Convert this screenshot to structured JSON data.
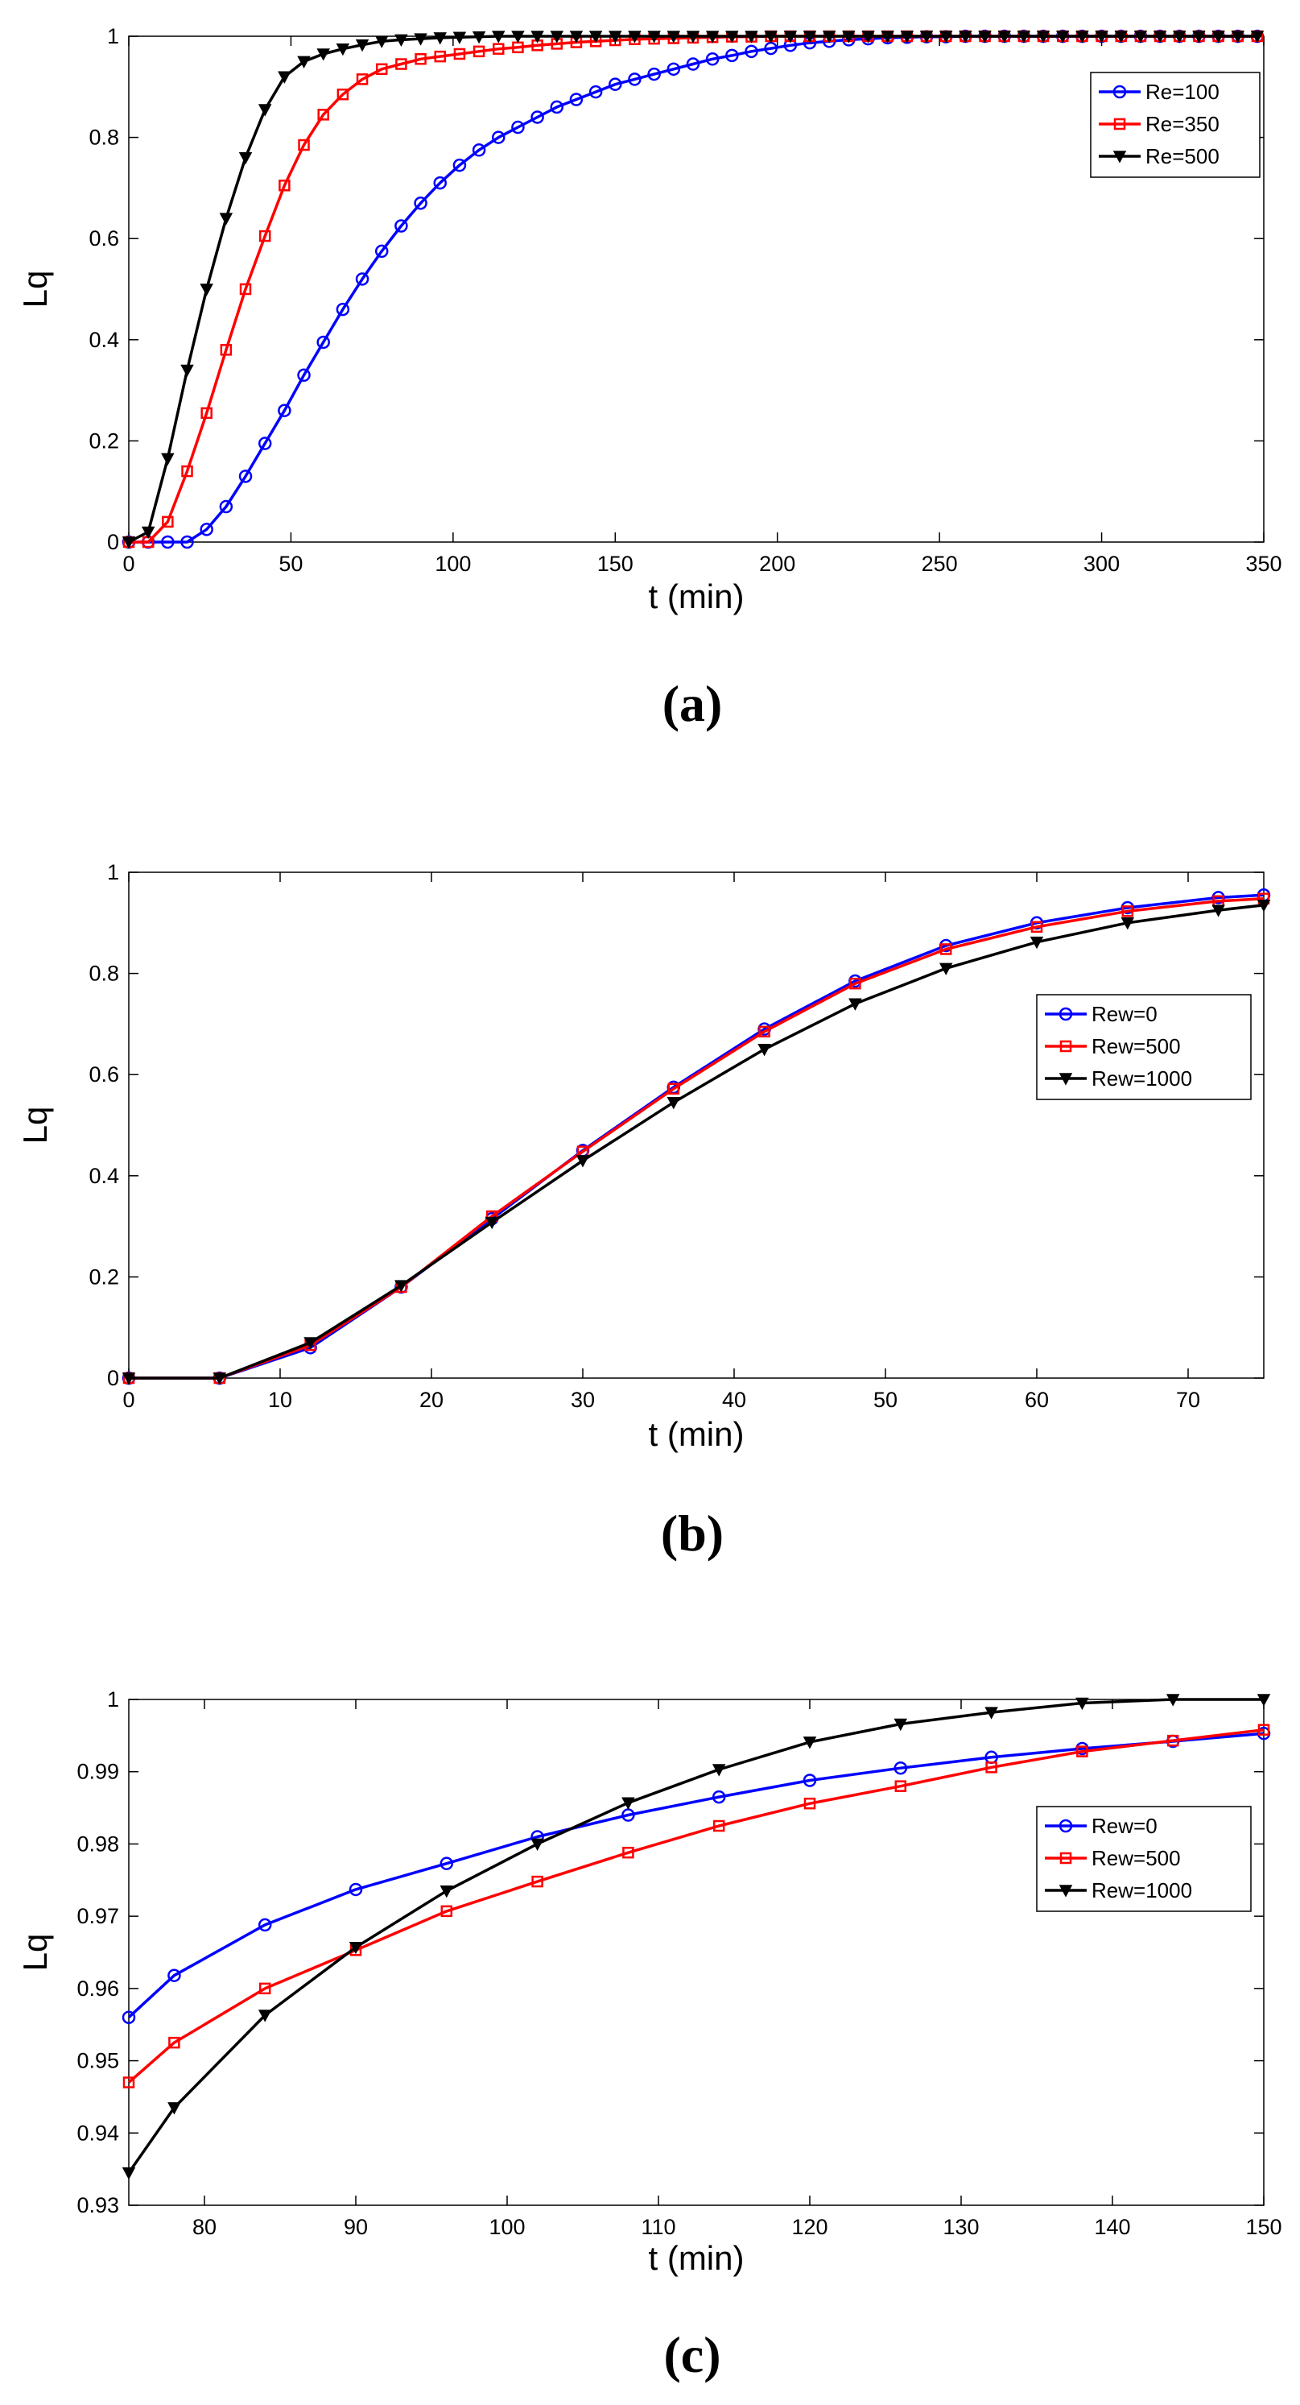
{
  "chart_data": [
    {
      "type": "line",
      "panel_label": "(a)",
      "xlabel": "t (min)",
      "ylabel": "Lq",
      "xlim": [
        0,
        350
      ],
      "ylim": [
        0,
        1
      ],
      "xticks": [
        0,
        50,
        100,
        150,
        200,
        250,
        300,
        350
      ],
      "yticks": [
        0,
        0.2,
        0.4,
        0.6,
        0.8,
        1
      ],
      "ytick_labels": [
        "0",
        "0.2",
        "0.4",
        "0.6",
        "0.8",
        "1"
      ],
      "legend_position": "top-right",
      "series": [
        {
          "name": "Re=100",
          "color": "#0000ff",
          "marker": "circle",
          "x": [
            0,
            6,
            12,
            18,
            24,
            30,
            36,
            42,
            48,
            54,
            60,
            66,
            72,
            78,
            84,
            90,
            96,
            102,
            108,
            114,
            120,
            126,
            132,
            138,
            144,
            150,
            156,
            162,
            168,
            174,
            180,
            186,
            192,
            198,
            204,
            210,
            216,
            222,
            228,
            234,
            240,
            246,
            252,
            258,
            264,
            270,
            276,
            282,
            288,
            294,
            300,
            306,
            312,
            318,
            324,
            330,
            336,
            342,
            348
          ],
          "y": [
            0,
            0,
            0,
            0,
            0.025,
            0.07,
            0.13,
            0.195,
            0.26,
            0.33,
            0.395,
            0.46,
            0.52,
            0.575,
            0.625,
            0.67,
            0.71,
            0.745,
            0.775,
            0.8,
            0.82,
            0.84,
            0.86,
            0.875,
            0.89,
            0.905,
            0.915,
            0.925,
            0.935,
            0.945,
            0.955,
            0.962,
            0.97,
            0.976,
            0.982,
            0.987,
            0.99,
            0.993,
            0.995,
            0.997,
            0.998,
            0.999,
            0.999,
            1,
            1,
            1,
            1,
            1,
            1,
            1,
            1,
            1,
            1,
            1,
            1,
            1,
            1,
            1,
            1
          ]
        },
        {
          "name": "Re=350",
          "color": "#ff0000",
          "marker": "square",
          "x": [
            0,
            6,
            12,
            18,
            24,
            30,
            36,
            42,
            48,
            54,
            60,
            66,
            72,
            78,
            84,
            90,
            96,
            102,
            108,
            114,
            120,
            126,
            132,
            138,
            144,
            150,
            156,
            162,
            168,
            174,
            180,
            186,
            192,
            198,
            204,
            210,
            216,
            222,
            228,
            234,
            240,
            246,
            252,
            258,
            264,
            270,
            276,
            282,
            288,
            294,
            300,
            306,
            312,
            318,
            324,
            330,
            336,
            342,
            348
          ],
          "y": [
            0,
            0,
            0.04,
            0.14,
            0.255,
            0.38,
            0.5,
            0.605,
            0.705,
            0.785,
            0.845,
            0.885,
            0.915,
            0.935,
            0.945,
            0.955,
            0.96,
            0.965,
            0.97,
            0.975,
            0.978,
            0.982,
            0.985,
            0.988,
            0.99,
            0.992,
            0.994,
            0.995,
            0.996,
            0.997,
            0.998,
            0.999,
            0.999,
            1,
            1,
            1,
            1,
            1,
            1,
            1,
            1,
            1,
            1,
            1,
            1,
            1,
            1,
            1,
            1,
            1,
            1,
            1,
            1,
            1,
            1,
            1,
            1,
            1,
            1
          ]
        },
        {
          "name": "Re=500",
          "color": "#000000",
          "marker": "triangle-down",
          "x": [
            0,
            6,
            12,
            18,
            24,
            30,
            36,
            42,
            48,
            54,
            60,
            66,
            72,
            78,
            84,
            90,
            96,
            102,
            108,
            114,
            120,
            126,
            132,
            138,
            144,
            150,
            156,
            162,
            168,
            174,
            180,
            186,
            192,
            198,
            204,
            210,
            216,
            222,
            228,
            234,
            240,
            246,
            252,
            258,
            264,
            270,
            276,
            282,
            288,
            294,
            300,
            306,
            312,
            318,
            324,
            330,
            336,
            342,
            348
          ],
          "y": [
            0,
            0.02,
            0.165,
            0.34,
            0.5,
            0.64,
            0.76,
            0.855,
            0.92,
            0.95,
            0.965,
            0.975,
            0.983,
            0.99,
            0.993,
            0.995,
            0.997,
            0.998,
            0.999,
            1,
            1,
            1,
            1,
            1,
            1,
            1,
            1,
            1,
            1,
            1,
            1,
            1,
            1,
            1,
            1,
            1,
            1,
            1,
            1,
            1,
            1,
            1,
            1,
            1,
            1,
            1,
            1,
            1,
            1,
            1,
            1,
            1,
            1,
            1,
            1,
            1,
            1,
            1,
            1
          ]
        }
      ]
    },
    {
      "type": "line",
      "panel_label": "(b)",
      "xlabel": "t (min)",
      "ylabel": "Lq",
      "xlim": [
        0,
        75
      ],
      "ylim": [
        0,
        1
      ],
      "xticks": [
        0,
        10,
        20,
        30,
        40,
        50,
        60,
        70
      ],
      "yticks": [
        0,
        0.2,
        0.4,
        0.6,
        0.8,
        1
      ],
      "ytick_labels": [
        "0",
        "0.2",
        "0.4",
        "0.6",
        "0.8",
        "1"
      ],
      "legend_position": "middle-right",
      "series": [
        {
          "name": "Rew=0",
          "color": "#0000ff",
          "marker": "circle",
          "x": [
            0,
            6,
            12,
            18,
            24,
            30,
            36,
            42,
            48,
            54,
            60,
            66,
            72,
            75
          ],
          "y": [
            0,
            0,
            0.06,
            0.18,
            0.315,
            0.45,
            0.575,
            0.69,
            0.785,
            0.855,
            0.9,
            0.93,
            0.95,
            0.955
          ]
        },
        {
          "name": "Rew=500",
          "color": "#ff0000",
          "marker": "square",
          "x": [
            0,
            6,
            12,
            18,
            24,
            30,
            36,
            42,
            48,
            54,
            60,
            66,
            72,
            75
          ],
          "y": [
            0,
            0,
            0.065,
            0.18,
            0.32,
            0.448,
            0.572,
            0.685,
            0.78,
            0.848,
            0.892,
            0.923,
            0.943,
            0.948
          ]
        },
        {
          "name": "Rew=1000",
          "color": "#000000",
          "marker": "triangle-down",
          "x": [
            0,
            6,
            12,
            18,
            24,
            30,
            36,
            42,
            48,
            54,
            60,
            66,
            72,
            75
          ],
          "y": [
            0,
            0,
            0.07,
            0.183,
            0.308,
            0.43,
            0.545,
            0.65,
            0.74,
            0.81,
            0.862,
            0.9,
            0.925,
            0.935
          ]
        }
      ]
    },
    {
      "type": "line",
      "panel_label": "(c)",
      "xlabel": "t (min)",
      "ylabel": "Lq",
      "xlim": [
        75,
        150
      ],
      "ylim": [
        0.93,
        1
      ],
      "xticks": [
        80,
        90,
        100,
        110,
        120,
        130,
        140,
        150
      ],
      "yticks": [
        0.93,
        0.94,
        0.95,
        0.96,
        0.97,
        0.98,
        0.99,
        1
      ],
      "ytick_labels": [
        "0.93",
        "0.94",
        "0.95",
        "0.96",
        "0.97",
        "0.98",
        "0.99",
        "1"
      ],
      "legend_position": "middle-right",
      "series": [
        {
          "name": "Rew=0",
          "color": "#0000ff",
          "marker": "circle",
          "x": [
            75,
            78,
            84,
            90,
            96,
            102,
            108,
            114,
            120,
            126,
            132,
            138,
            144,
            150
          ],
          "y": [
            0.956,
            0.9618,
            0.9688,
            0.9737,
            0.9773,
            0.981,
            0.984,
            0.9865,
            0.9888,
            0.9905,
            0.992,
            0.9932,
            0.9942,
            0.9953
          ]
        },
        {
          "name": "Rew=500",
          "color": "#ff0000",
          "marker": "square",
          "x": [
            75,
            78,
            84,
            90,
            96,
            102,
            108,
            114,
            120,
            126,
            132,
            138,
            144,
            150
          ],
          "y": [
            0.947,
            0.9525,
            0.96,
            0.9653,
            0.9707,
            0.9748,
            0.9788,
            0.9825,
            0.9856,
            0.988,
            0.9906,
            0.9928,
            0.9943,
            0.9958
          ]
        },
        {
          "name": "Rew=1000",
          "color": "#000000",
          "marker": "triangle-down",
          "x": [
            75,
            78,
            84,
            90,
            96,
            102,
            108,
            114,
            120,
            126,
            132,
            138,
            144,
            150
          ],
          "y": [
            0.9345,
            0.9435,
            0.9563,
            0.9657,
            0.9735,
            0.98,
            0.9857,
            0.9903,
            0.9941,
            0.9966,
            0.9982,
            0.9995,
            1,
            1
          ]
        }
      ]
    }
  ]
}
